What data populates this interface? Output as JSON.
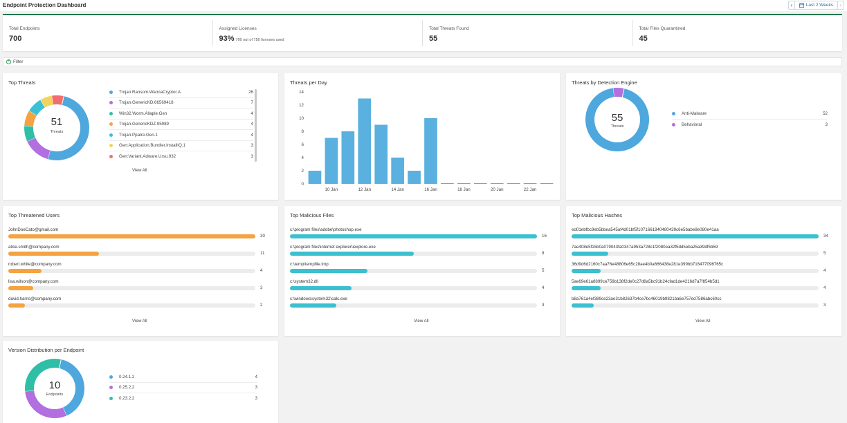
{
  "header": {
    "title": "Endpoint Protection Dashboard",
    "date_range": "Last 2 Weeks"
  },
  "stats": [
    {
      "label": "Total Endpoints",
      "value": "700",
      "sub": ""
    },
    {
      "label": "Assigned Licenses",
      "value": "93%",
      "sub": "700 out of 750 licenses used"
    },
    {
      "label": "Total Threats Found",
      "value": "55",
      "sub": ""
    },
    {
      "label": "Total Files Quarantined",
      "value": "45",
      "sub": ""
    }
  ],
  "filter": {
    "label": "Filter"
  },
  "top_threats": {
    "title": "Top Threats",
    "center_value": "51",
    "center_label": "Threats",
    "view_all": "View All",
    "items": [
      {
        "name": "Trojan.Ransom.WannaCryptor.A",
        "value": 26,
        "color": "#4ea7dd"
      },
      {
        "name": "Trojan.GenericKD.66569418",
        "value": 7,
        "color": "#b26fe0"
      },
      {
        "name": "Win32.Worm.Allaple.Gen",
        "value": 4,
        "color": "#2fbfa6"
      },
      {
        "name": "Trojan.GenericKDZ.95989",
        "value": 4,
        "color": "#f4a340"
      },
      {
        "name": "Trojan.Ppatre.Gen.1",
        "value": 4,
        "color": "#3cc0d6"
      },
      {
        "name": "Gen:Application.Bundler.InstallIQ.1",
        "value": 3,
        "color": "#f2d45c"
      },
      {
        "name": "Gen:Variant.Adware.Ursu.932",
        "value": 3,
        "color": "#f26d6d"
      }
    ]
  },
  "threats_per_day": {
    "title": "Threats per Day",
    "chart_data": {
      "type": "bar",
      "title": "Threats per Day",
      "categories": [
        "9 Jan",
        "10 Jan",
        "11 Jan",
        "12 Jan",
        "13 Jan",
        "14 Jan",
        "15 Jan",
        "16 Jan",
        "17 Jan",
        "18 Jan",
        "19 Jan",
        "20 Jan",
        "21 Jan",
        "22 Jan",
        "23 Jan"
      ],
      "values": [
        2,
        7,
        8,
        13,
        9,
        4,
        2,
        10,
        0,
        0,
        0,
        0,
        0,
        0,
        0
      ],
      "x_tick_labels": [
        "10 Jan",
        "12 Jan",
        "14 Jan",
        "16 Jan",
        "18 Jan",
        "20 Jan",
        "22 Jan"
      ],
      "y_ticks": [
        0,
        2,
        4,
        6,
        8,
        10,
        12,
        14
      ],
      "ylim": [
        0,
        14
      ],
      "color": "#5ab0de"
    }
  },
  "detection_engine": {
    "title": "Threats by Detection Engine",
    "center_value": "55",
    "center_label": "Threats",
    "items": [
      {
        "name": "Anti-Malware",
        "value": 52,
        "color": "#4ea7dd"
      },
      {
        "name": "Behavioral",
        "value": 3,
        "color": "#b26fe0"
      }
    ]
  },
  "threatened_users": {
    "title": "Top Threatened Users",
    "view_all": "View All",
    "color": "#f4a340",
    "max": 30,
    "items": [
      {
        "name": "JohnDoeCato@gmail.com",
        "value": 30
      },
      {
        "name": "alice.smith@company.com",
        "value": 11
      },
      {
        "name": "robert.white@company.com",
        "value": 4
      },
      {
        "name": "lisa.wilson@company.com",
        "value": 3
      },
      {
        "name": "david.harris@company.com",
        "value": 2
      }
    ]
  },
  "malicious_files": {
    "title": "Top Malicious Files",
    "view_all": "View All",
    "color": "#3cc0d0",
    "max": 16,
    "items": [
      {
        "name": "c:\\program files\\adobe\\photoshop.exe",
        "value": 16
      },
      {
        "name": "c:\\program files\\internet explorer\\iexplore.exe",
        "value": 8
      },
      {
        "name": "c:\\temp\\tempfile.tmp",
        "value": 5
      },
      {
        "name": "c:\\system32.dll",
        "value": 4
      },
      {
        "name": "c:\\windows\\system32\\calc.exe",
        "value": 3
      }
    ]
  },
  "malicious_hashes": {
    "title": "Top Malicious Hashes",
    "view_all": "View All",
    "color": "#3cc0d0",
    "max": 34,
    "items": [
      {
        "name": "ed01ebfbc9eb5bbea545af4d01bf5f1071661840480439c6e5babe8e080e41aa",
        "value": 34
      },
      {
        "name": "7ae408e5f15b0a079043fa0347a953a728c1f2080ea32f5dd5eba25a39df5b59",
        "value": 5
      },
      {
        "name": "36d9d6d2160c7aa76e48806e65c28ae4b0a666438e281e399bb716477096765c",
        "value": 4
      },
      {
        "name": "5ae69e61a8899ce756b138f2de0c27d8a5bc91b24cfad1de4216d7a7f854b5d1",
        "value": 4
      },
      {
        "name": "b8a761a4ef389ce23ae31b82637b4ce7bc46019b9821ba6e757ed7586abc60cc",
        "value": 3
      }
    ]
  },
  "version_distribution": {
    "title": "Version Distribution per Endpoint",
    "center_value": "10",
    "center_label": "Endpoints",
    "items": [
      {
        "name": "0.24.1.2",
        "value": 4,
        "color": "#4ea7dd"
      },
      {
        "name": "0.25.2.2",
        "value": 3,
        "color": "#b26fe0"
      },
      {
        "name": "0.23.2.2",
        "value": 3,
        "color": "#2fbfa6"
      }
    ]
  }
}
